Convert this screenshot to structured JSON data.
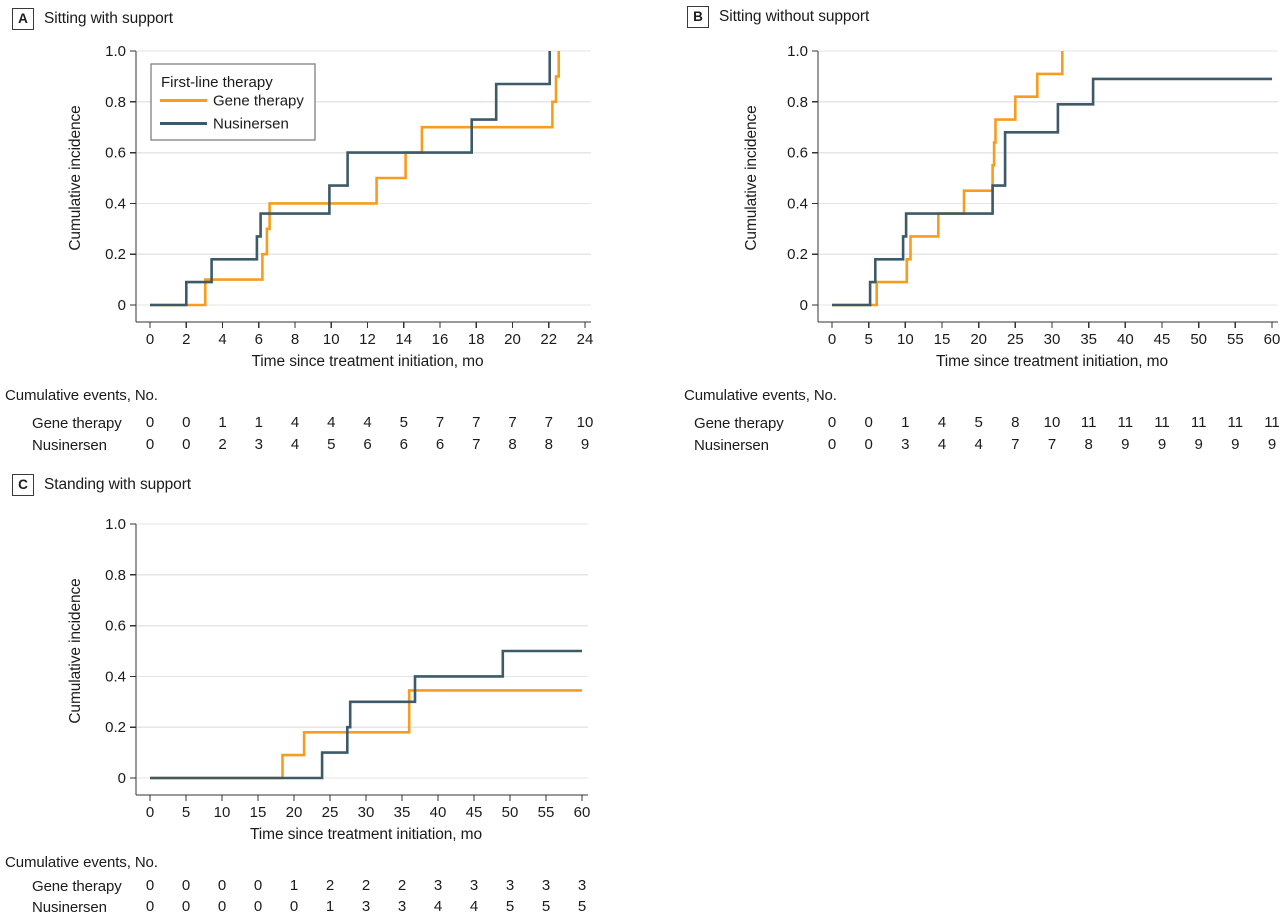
{
  "figure": {
    "colors": {
      "gene_therapy": "#F79D1E",
      "nusinersen": "#3C5A67",
      "grid": "#E6E6E6",
      "axis": "#333333",
      "text": "#1B1B1B",
      "legend_border": "#7F7F7F"
    },
    "legend": {
      "title": "First-line therapy",
      "entries": [
        {
          "label": "Gene therapy",
          "key": "gene_therapy"
        },
        {
          "label": "Nusinersen",
          "key": "nusinersen"
        }
      ]
    },
    "events_table_header": "Cumulative events, No."
  },
  "chart_data": [
    {
      "panel": "A",
      "title": "Sitting with support",
      "type": "line",
      "step": true,
      "xlabel": "Time since treatment initiation, mo",
      "ylabel": "Cumulative incidence",
      "xlim": [
        0,
        24
      ],
      "ylim": [
        0,
        1
      ],
      "xticks": [
        0,
        2,
        4,
        6,
        8,
        10,
        12,
        14,
        16,
        18,
        20,
        22,
        24
      ],
      "yticks": [
        0,
        0.2,
        0.4,
        0.6,
        0.8,
        1
      ],
      "ytick_labels": [
        "0",
        "0.2",
        "0.4",
        "0.6",
        "0.8",
        "1.0"
      ],
      "grid": true,
      "legend_position": "upper-left",
      "show_legend": true,
      "series": [
        {
          "name": "Gene therapy",
          "key": "gene_therapy",
          "end_x": 22.55,
          "steps": [
            [
              3.05,
              0.1
            ],
            [
              6.2,
              0.2
            ],
            [
              6.45,
              0.3
            ],
            [
              6.6,
              0.4
            ],
            [
              12.5,
              0.5
            ],
            [
              14.1,
              0.6
            ],
            [
              15.0,
              0.7
            ],
            [
              22.2,
              0.8
            ],
            [
              22.4,
              0.9
            ],
            [
              22.55,
              1.0
            ]
          ]
        },
        {
          "name": "Nusinersen",
          "key": "nusinersen",
          "end_x": 22.05,
          "steps": [
            [
              2.0,
              0.09
            ],
            [
              3.4,
              0.18
            ],
            [
              5.9,
              0.27
            ],
            [
              6.1,
              0.36
            ],
            [
              9.9,
              0.47
            ],
            [
              10.9,
              0.6
            ],
            [
              17.75,
              0.73
            ],
            [
              19.1,
              0.87
            ],
            [
              22.05,
              1.0
            ]
          ]
        }
      ],
      "cumulative_events": {
        "rows": [
          {
            "label": "Gene therapy",
            "values": [
              0,
              0,
              1,
              1,
              4,
              4,
              4,
              5,
              7,
              7,
              7,
              7,
              10
            ]
          },
          {
            "label": "Nusinersen",
            "values": [
              0,
              0,
              2,
              3,
              4,
              5,
              6,
              6,
              6,
              7,
              8,
              8,
              9
            ]
          }
        ]
      }
    },
    {
      "panel": "B",
      "title": "Sitting without support",
      "type": "line",
      "step": true,
      "xlabel": "Time since treatment initiation, mo",
      "ylabel": "Cumulative incidence",
      "xlim": [
        0,
        60
      ],
      "ylim": [
        0,
        1
      ],
      "xticks": [
        0,
        5,
        10,
        15,
        20,
        25,
        30,
        35,
        40,
        45,
        50,
        55,
        60
      ],
      "yticks": [
        0,
        0.2,
        0.4,
        0.6,
        0.8,
        1
      ],
      "ytick_labels": [
        "0",
        "0.2",
        "0.4",
        "0.6",
        "0.8",
        "1.0"
      ],
      "grid": true,
      "show_legend": false,
      "series": [
        {
          "name": "Gene therapy",
          "key": "gene_therapy",
          "end_x": 31.4,
          "steps": [
            [
              6.1,
              0.09
            ],
            [
              10.2,
              0.18
            ],
            [
              10.7,
              0.27
            ],
            [
              14.5,
              0.36
            ],
            [
              18.0,
              0.45
            ],
            [
              21.9,
              0.55
            ],
            [
              22.1,
              0.64
            ],
            [
              22.3,
              0.73
            ],
            [
              25.0,
              0.82
            ],
            [
              28.0,
              0.91
            ],
            [
              31.4,
              1.0
            ]
          ]
        },
        {
          "name": "Nusinersen",
          "key": "nusinersen",
          "end_x": 60,
          "steps": [
            [
              5.2,
              0.09
            ],
            [
              5.9,
              0.18
            ],
            [
              9.7,
              0.27
            ],
            [
              10.1,
              0.36
            ],
            [
              21.9,
              0.47
            ],
            [
              23.6,
              0.68
            ],
            [
              30.8,
              0.79
            ],
            [
              35.6,
              0.89
            ]
          ]
        }
      ],
      "cumulative_events": {
        "rows": [
          {
            "label": "Gene therapy",
            "values": [
              0,
              0,
              1,
              4,
              5,
              8,
              10,
              11,
              11,
              11,
              11,
              11,
              11
            ]
          },
          {
            "label": "Nusinersen",
            "values": [
              0,
              0,
              3,
              4,
              4,
              7,
              7,
              8,
              9,
              9,
              9,
              9,
              9
            ]
          }
        ]
      }
    },
    {
      "panel": "C",
      "title": "Standing with support",
      "type": "line",
      "step": true,
      "xlabel": "Time since treatment initiation, mo",
      "ylabel": "Cumulative incidence",
      "xlim": [
        0,
        60
      ],
      "ylim": [
        0,
        1
      ],
      "xticks": [
        0,
        5,
        10,
        15,
        20,
        25,
        30,
        35,
        40,
        45,
        50,
        55,
        60
      ],
      "yticks": [
        0,
        0.2,
        0.4,
        0.6,
        0.8,
        1
      ],
      "ytick_labels": [
        "0",
        "0.2",
        "0.4",
        "0.6",
        "0.8",
        "1.0"
      ],
      "grid": true,
      "show_legend": false,
      "series": [
        {
          "name": "Gene therapy",
          "key": "gene_therapy",
          "end_x": 60,
          "steps": [
            [
              18.4,
              0.09
            ],
            [
              21.4,
              0.18
            ],
            [
              36.0,
              0.345
            ]
          ]
        },
        {
          "name": "Nusinersen",
          "key": "nusinersen",
          "end_x": 60,
          "steps": [
            [
              23.9,
              0.1
            ],
            [
              27.4,
              0.2
            ],
            [
              27.8,
              0.3
            ],
            [
              36.8,
              0.4
            ],
            [
              49.0,
              0.5
            ]
          ]
        }
      ],
      "cumulative_events": {
        "rows": [
          {
            "label": "Gene therapy",
            "values": [
              0,
              0,
              0,
              0,
              1,
              2,
              2,
              2,
              3,
              3,
              3,
              3,
              3
            ]
          },
          {
            "label": "Nusinersen",
            "values": [
              0,
              0,
              0,
              0,
              0,
              1,
              3,
              3,
              4,
              4,
              5,
              5,
              5
            ]
          }
        ]
      }
    }
  ]
}
